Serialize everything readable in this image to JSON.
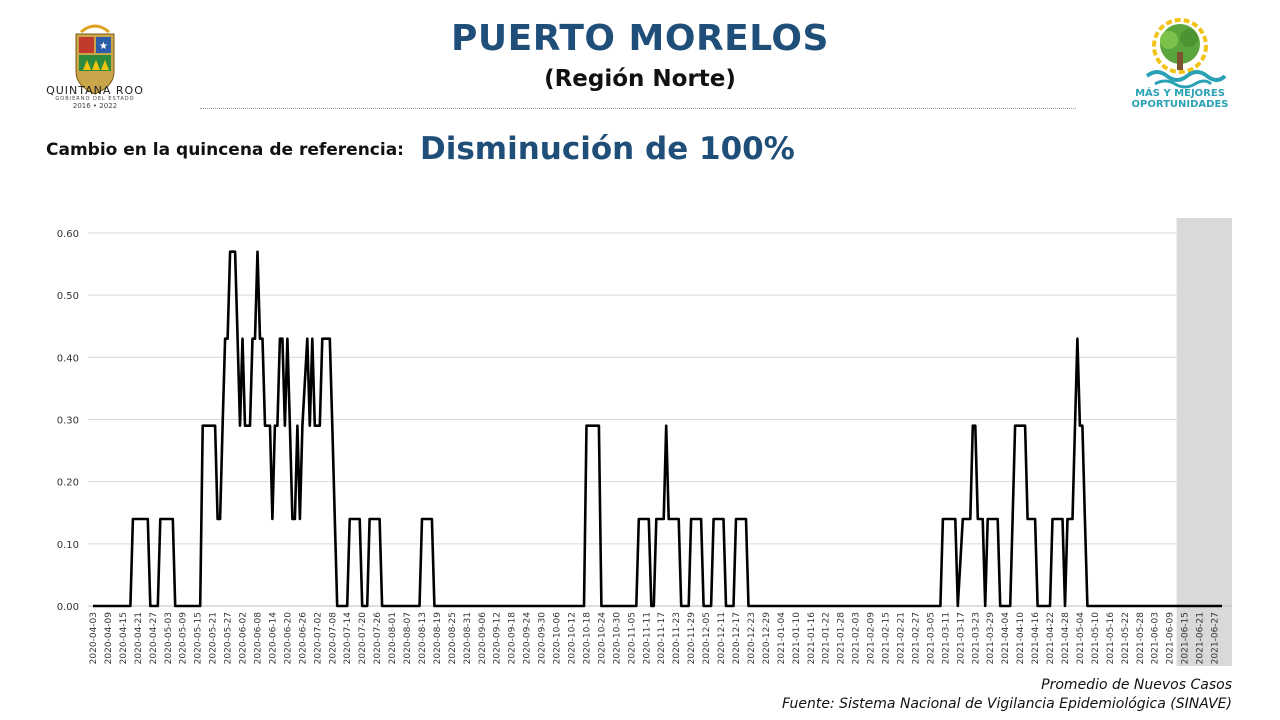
{
  "header": {
    "title": "PUERTO MORELOS",
    "subtitle": "(Región Norte)",
    "change_label": "Cambio en la quincena de referencia:",
    "change_value": "Disminución de 100%"
  },
  "logos": {
    "left_name": "QUINTANA ROO",
    "left_sub": "GOBIERNO DEL ESTADO",
    "left_years": "2016 • 2022",
    "right_line1": "MÁS Y MEJORES",
    "right_line2": "OPORTUNIDADES"
  },
  "footer": {
    "line1": "Promedio de Nuevos Casos",
    "line2": "Fuente: Sistema Nacional de Vigilancia Epidemiológica (SINAVE)"
  },
  "colors": {
    "title": "#1f4e79",
    "line": "#000000",
    "grid": "#d9d9d9",
    "shade": "#d9d9d9",
    "logo_teal": "#2aa1b5",
    "logo_green": "#5aa63c"
  },
  "chart_data": {
    "type": "line",
    "title": "",
    "xlabel": "",
    "ylabel": "",
    "ylim": [
      0,
      0.6
    ],
    "yticks": [
      "0.00",
      "0.10",
      "0.20",
      "0.30",
      "0.40",
      "0.50",
      "0.60"
    ],
    "grid": true,
    "shaded_region": [
      "2021-06-15",
      "2021-06-30"
    ],
    "x_tick_labels": [
      "2020-04-03",
      "2020-04-09",
      "2020-04-15",
      "2020-04-21",
      "2020-04-27",
      "2020-05-03",
      "2020-05-09",
      "2020-05-15",
      "2020-05-21",
      "2020-05-27",
      "2020-06-02",
      "2020-06-08",
      "2020-06-14",
      "2020-06-20",
      "2020-06-26",
      "2020-07-02",
      "2020-07-08",
      "2020-07-14",
      "2020-07-20",
      "2020-07-26",
      "2020-08-01",
      "2020-08-07",
      "2020-08-13",
      "2020-08-19",
      "2020-08-25",
      "2020-08-31",
      "2020-09-06",
      "2020-09-12",
      "2020-09-18",
      "2020-09-24",
      "2020-09-30",
      "2020-10-06",
      "2020-10-12",
      "2020-10-18",
      "2020-10-24",
      "2020-10-30",
      "2020-11-05",
      "2020-11-11",
      "2020-11-17",
      "2020-11-23",
      "2020-11-29",
      "2020-12-05",
      "2020-12-11",
      "2020-12-17",
      "2020-12-23",
      "2020-12-29",
      "2021-01-04",
      "2021-01-10",
      "2021-01-16",
      "2021-01-22",
      "2021-01-28",
      "2021-02-03",
      "2021-02-09",
      "2021-02-15",
      "2021-02-21",
      "2021-02-27",
      "2021-03-05",
      "2021-03-11",
      "2021-03-17",
      "2021-03-23",
      "2021-03-29",
      "2021-04-04",
      "2021-04-10",
      "2021-04-16",
      "2021-04-22",
      "2021-04-28",
      "2021-05-04",
      "2021-05-10",
      "2021-05-16",
      "2021-05-22",
      "2021-05-28",
      "2021-06-03",
      "2021-06-09",
      "2021-06-15",
      "2021-06-21",
      "2021-06-27"
    ],
    "series": [
      {
        "name": "",
        "points": [
          [
            "2020-04-03",
            0
          ],
          [
            "2020-04-18",
            0
          ],
          [
            "2020-04-19",
            0.14
          ],
          [
            "2020-04-21",
            0.14
          ],
          [
            "2020-04-25",
            0.14
          ],
          [
            "2020-04-26",
            0
          ],
          [
            "2020-04-29",
            0
          ],
          [
            "2020-04-30",
            0.14
          ],
          [
            "2020-05-03",
            0.14
          ],
          [
            "2020-05-05",
            0.14
          ],
          [
            "2020-05-06",
            0
          ],
          [
            "2020-05-16",
            0
          ],
          [
            "2020-05-17",
            0.29
          ],
          [
            "2020-05-22",
            0.29
          ],
          [
            "2020-05-23",
            0.14
          ],
          [
            "2020-05-24",
            0.14
          ],
          [
            "2020-05-25",
            0.29
          ],
          [
            "2020-05-26",
            0.43
          ],
          [
            "2020-05-27",
            0.43
          ],
          [
            "2020-05-28",
            0.57
          ],
          [
            "2020-05-29",
            0.57
          ],
          [
            "2020-05-30",
            0.57
          ],
          [
            "2020-05-31",
            0.43
          ],
          [
            "2020-06-01",
            0.29
          ],
          [
            "2020-06-02",
            0.43
          ],
          [
            "2020-06-03",
            0.29
          ],
          [
            "2020-06-04",
            0.29
          ],
          [
            "2020-06-05",
            0.29
          ],
          [
            "2020-06-06",
            0.43
          ],
          [
            "2020-06-07",
            0.43
          ],
          [
            "2020-06-08",
            0.57
          ],
          [
            "2020-06-09",
            0.43
          ],
          [
            "2020-06-10",
            0.43
          ],
          [
            "2020-06-11",
            0.29
          ],
          [
            "2020-06-13",
            0.29
          ],
          [
            "2020-06-14",
            0.14
          ],
          [
            "2020-06-15",
            0.29
          ],
          [
            "2020-06-16",
            0.29
          ],
          [
            "2020-06-17",
            0.43
          ],
          [
            "2020-06-18",
            0.43
          ],
          [
            "2020-06-19",
            0.29
          ],
          [
            "2020-06-20",
            0.43
          ],
          [
            "2020-06-21",
            0.29
          ],
          [
            "2020-06-22",
            0.14
          ],
          [
            "2020-06-23",
            0.14
          ],
          [
            "2020-06-24",
            0.29
          ],
          [
            "2020-06-25",
            0.14
          ],
          [
            "2020-06-26",
            0.29
          ],
          [
            "2020-06-28",
            0.43
          ],
          [
            "2020-06-29",
            0.29
          ],
          [
            "2020-06-30",
            0.43
          ],
          [
            "2020-07-01",
            0.29
          ],
          [
            "2020-07-03",
            0.29
          ],
          [
            "2020-07-04",
            0.43
          ],
          [
            "2020-07-05",
            0.43
          ],
          [
            "2020-07-07",
            0.43
          ],
          [
            "2020-07-08",
            0.29
          ],
          [
            "2020-07-09",
            0.14
          ],
          [
            "2020-07-10",
            0
          ],
          [
            "2020-07-14",
            0
          ],
          [
            "2020-07-15",
            0.14
          ],
          [
            "2020-07-19",
            0.14
          ],
          [
            "2020-07-20",
            0
          ],
          [
            "2020-07-22",
            0
          ],
          [
            "2020-07-23",
            0.14
          ],
          [
            "2020-07-27",
            0.14
          ],
          [
            "2020-07-28",
            0
          ],
          [
            "2020-08-12",
            0
          ],
          [
            "2020-08-13",
            0.14
          ],
          [
            "2020-08-17",
            0.14
          ],
          [
            "2020-08-18",
            0
          ],
          [
            "2020-10-17",
            0
          ],
          [
            "2020-10-18",
            0.29
          ],
          [
            "2020-10-23",
            0.29
          ],
          [
            "2020-10-24",
            0
          ],
          [
            "2020-11-07",
            0
          ],
          [
            "2020-11-08",
            0.14
          ],
          [
            "2020-11-12",
            0.14
          ],
          [
            "2020-11-13",
            0
          ],
          [
            "2020-11-14",
            0
          ],
          [
            "2020-11-15",
            0.14
          ],
          [
            "2020-11-18",
            0.14
          ],
          [
            "2020-11-19",
            0.29
          ],
          [
            "2020-11-20",
            0.14
          ],
          [
            "2020-11-24",
            0.14
          ],
          [
            "2020-11-25",
            0
          ],
          [
            "2020-11-28",
            0
          ],
          [
            "2020-11-29",
            0.14
          ],
          [
            "2020-12-03",
            0.14
          ],
          [
            "2020-12-04",
            0
          ],
          [
            "2020-12-07",
            0
          ],
          [
            "2020-12-08",
            0.14
          ],
          [
            "2020-12-12",
            0.14
          ],
          [
            "2020-12-13",
            0
          ],
          [
            "2020-12-16",
            0
          ],
          [
            "2020-12-17",
            0.14
          ],
          [
            "2020-12-21",
            0.14
          ],
          [
            "2020-12-22",
            0
          ],
          [
            "2021-03-09",
            0
          ],
          [
            "2021-03-10",
            0.14
          ],
          [
            "2021-03-15",
            0.14
          ],
          [
            "2021-03-16",
            0
          ],
          [
            "2021-03-18",
            0.14
          ],
          [
            "2021-03-21",
            0.14
          ],
          [
            "2021-03-22",
            0.29
          ],
          [
            "2021-03-23",
            0.29
          ],
          [
            "2021-03-24",
            0.14
          ],
          [
            "2021-03-26",
            0.14
          ],
          [
            "2021-03-27",
            0
          ],
          [
            "2021-03-28",
            0.14
          ],
          [
            "2021-04-01",
            0.14
          ],
          [
            "2021-04-02",
            0
          ],
          [
            "2021-04-06",
            0
          ],
          [
            "2021-04-07",
            0.14
          ],
          [
            "2021-04-08",
            0.29
          ],
          [
            "2021-04-12",
            0.29
          ],
          [
            "2021-04-13",
            0.14
          ],
          [
            "2021-04-16",
            0.14
          ],
          [
            "2021-04-17",
            0
          ],
          [
            "2021-04-22",
            0
          ],
          [
            "2021-04-23",
            0.14
          ],
          [
            "2021-04-27",
            0.14
          ],
          [
            "2021-04-28",
            0
          ],
          [
            "2021-04-29",
            0.14
          ],
          [
            "2021-05-01",
            0.14
          ],
          [
            "2021-05-02",
            0.29
          ],
          [
            "2021-05-03",
            0.43
          ],
          [
            "2021-05-04",
            0.29
          ],
          [
            "2021-05-05",
            0.29
          ],
          [
            "2021-05-06",
            0.14
          ],
          [
            "2021-05-07",
            0
          ],
          [
            "2021-06-30",
            0
          ]
        ]
      }
    ]
  }
}
